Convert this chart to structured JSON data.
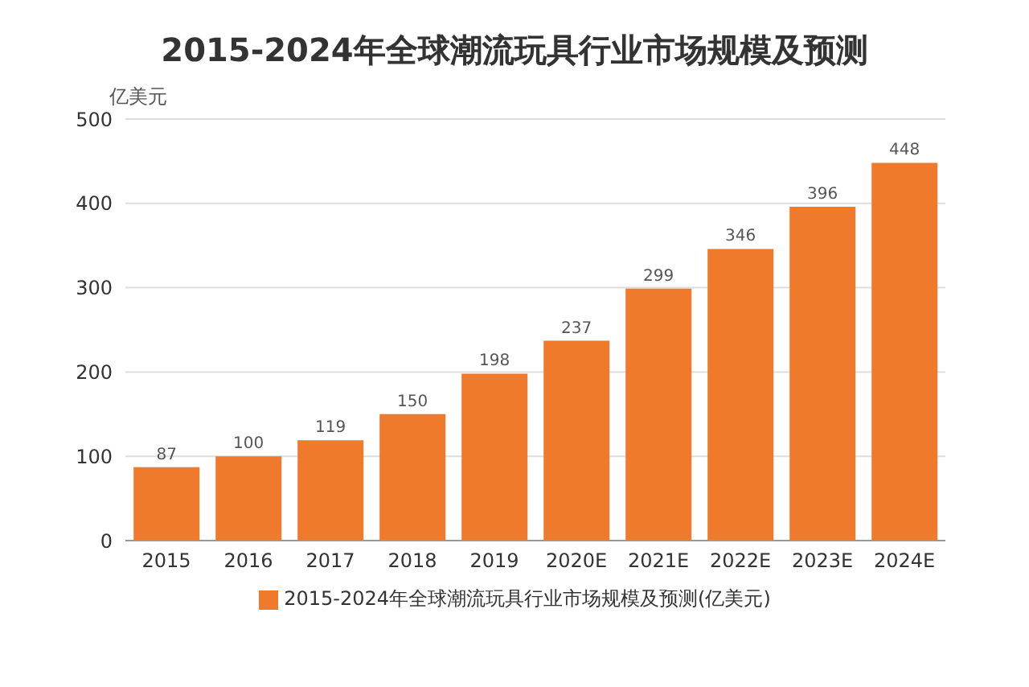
{
  "chart_data": {
    "type": "bar",
    "title": "2015-2024年全球潮流玩具行业市场规模及预测",
    "ylabel": "亿美元",
    "categories": [
      "2015",
      "2016",
      "2017",
      "2018",
      "2019",
      "2020E",
      "2021E",
      "2022E",
      "2023E",
      "2024E"
    ],
    "series": [
      {
        "name": "2015-2024年全球潮流玩具行业市场规模及预测(亿美元)",
        "color": "#ef7a2b",
        "values": [
          87,
          100,
          119,
          150,
          198,
          237,
          299,
          346,
          396,
          448
        ]
      }
    ],
    "ylim": [
      0,
      500
    ],
    "yticks": [
      0,
      100,
      200,
      300,
      400,
      500
    ],
    "grid": "y",
    "legend": "bottom",
    "data_labels": true
  }
}
